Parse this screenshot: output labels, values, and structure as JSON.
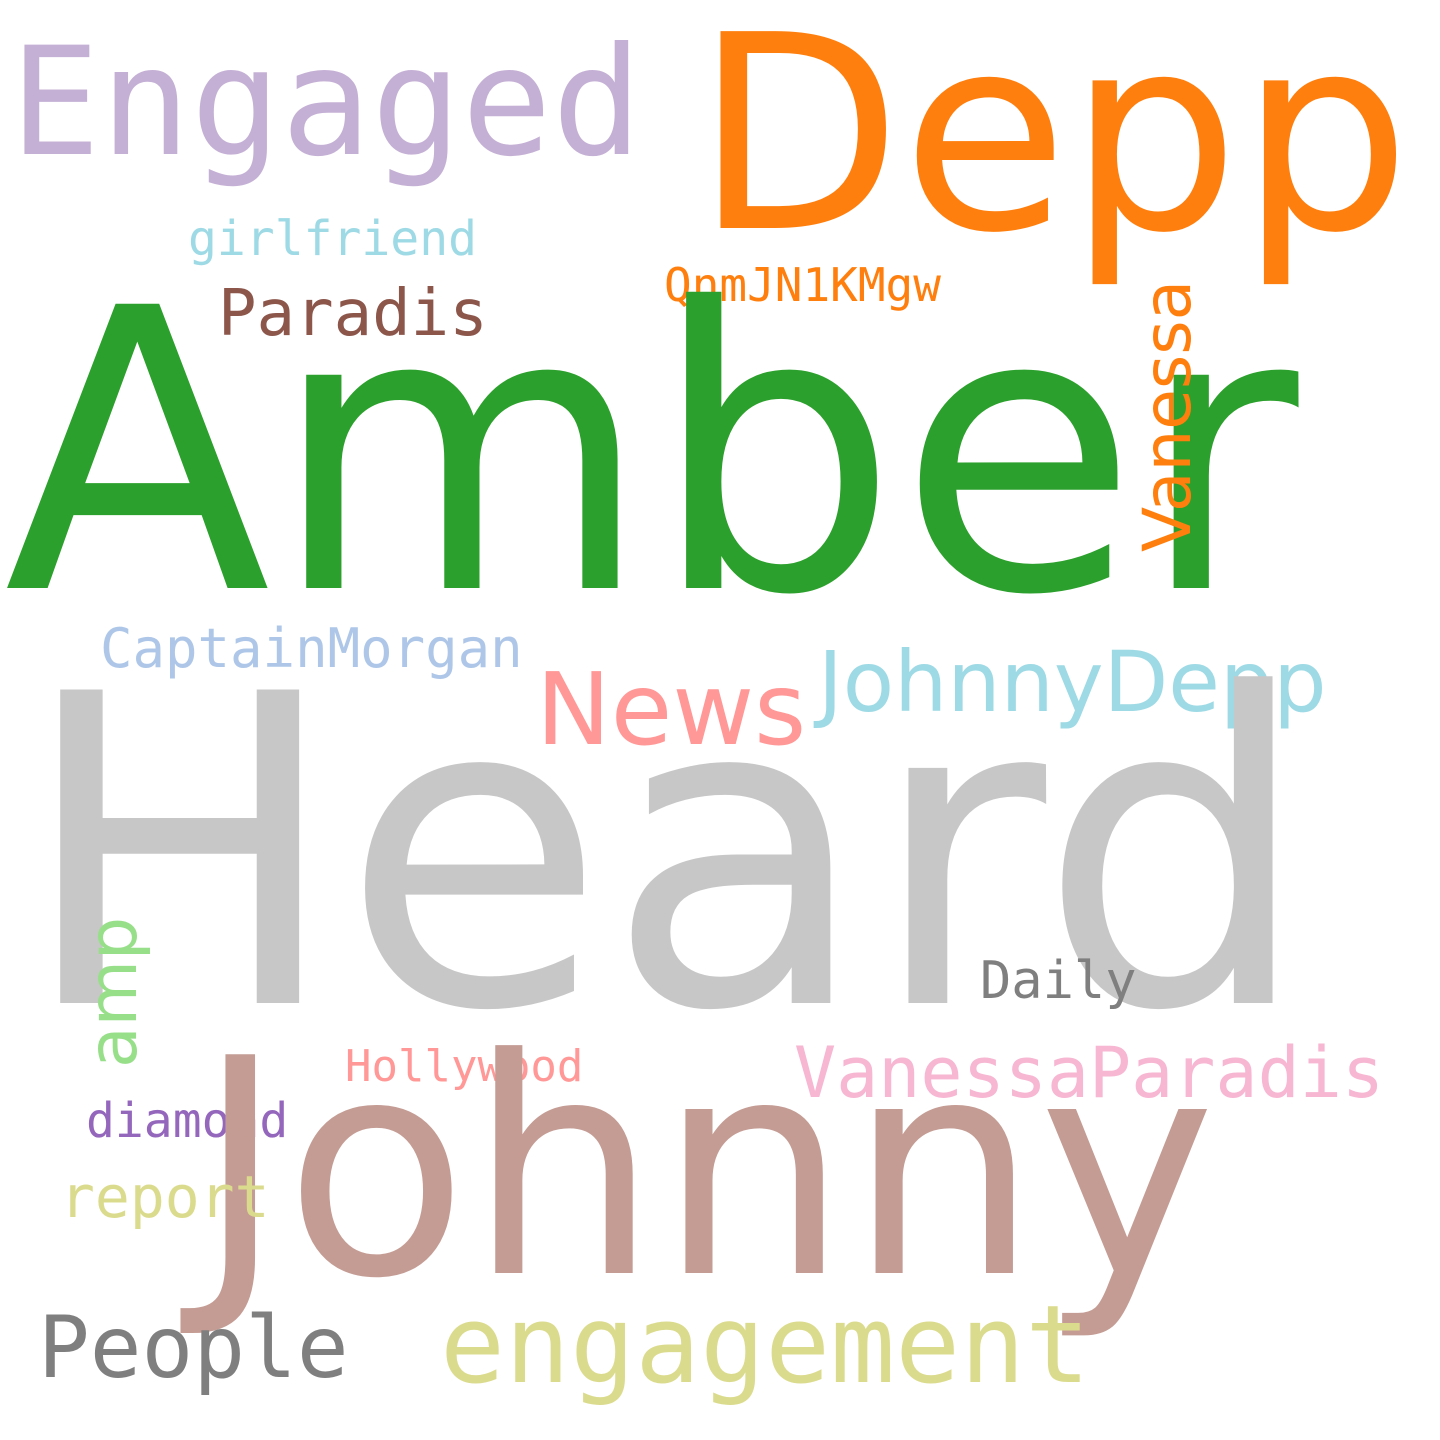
{
  "words": [
    {
      "id": "heard",
      "text": "Heard",
      "color": "#c7c7c7",
      "orientation": "horizontal"
    },
    {
      "id": "amber",
      "text": "Amber",
      "color": "#2ca02c",
      "orientation": "horizontal"
    },
    {
      "id": "johnny",
      "text": "Johnny",
      "color": "#c49c94",
      "orientation": "horizontal"
    },
    {
      "id": "depp",
      "text": "Depp",
      "color": "#ff7f0e",
      "orientation": "horizontal"
    },
    {
      "id": "engaged",
      "text": "Engaged",
      "color": "#c5b0d5",
      "orientation": "horizontal"
    },
    {
      "id": "engagement",
      "text": "engagement",
      "color": "#dbdb8d",
      "orientation": "horizontal"
    },
    {
      "id": "news",
      "text": "News",
      "color": "#ff9896",
      "orientation": "horizontal"
    },
    {
      "id": "johnnydepp",
      "text": "JohnnyDepp",
      "color": "#9edae5",
      "orientation": "horizontal"
    },
    {
      "id": "people",
      "text": "People",
      "color": "#7f7f7f",
      "orientation": "horizontal"
    },
    {
      "id": "vanessaparadis",
      "text": "VanessaParadis",
      "color": "#f7b6d2",
      "orientation": "horizontal"
    },
    {
      "id": "vanessa",
      "text": "Vanessa",
      "color": "#ff7f0e",
      "orientation": "vertical"
    },
    {
      "id": "amp",
      "text": "amp",
      "color": "#98df8a",
      "orientation": "vertical"
    },
    {
      "id": "paradis",
      "text": "Paradis",
      "color": "#8c564b",
      "orientation": "horizontal"
    },
    {
      "id": "report",
      "text": "report",
      "color": "#dbdb8d",
      "orientation": "horizontal"
    },
    {
      "id": "captainmorgan",
      "text": "CaptainMorgan",
      "color": "#aec7e8",
      "orientation": "horizontal"
    },
    {
      "id": "daily",
      "text": "Daily",
      "color": "#7f7f7f",
      "orientation": "horizontal"
    },
    {
      "id": "girlfriend",
      "text": "girlfriend",
      "color": "#9edae5",
      "orientation": "horizontal"
    },
    {
      "id": "diamond",
      "text": "diamond",
      "color": "#9467bd",
      "orientation": "horizontal"
    },
    {
      "id": "qnmjn1kmgw",
      "text": "QnmJN1KMgw",
      "color": "#ff7f0e",
      "orientation": "horizontal"
    },
    {
      "id": "hollywood",
      "text": "Hollywood",
      "color": "#ff9896",
      "orientation": "horizontal"
    }
  ]
}
